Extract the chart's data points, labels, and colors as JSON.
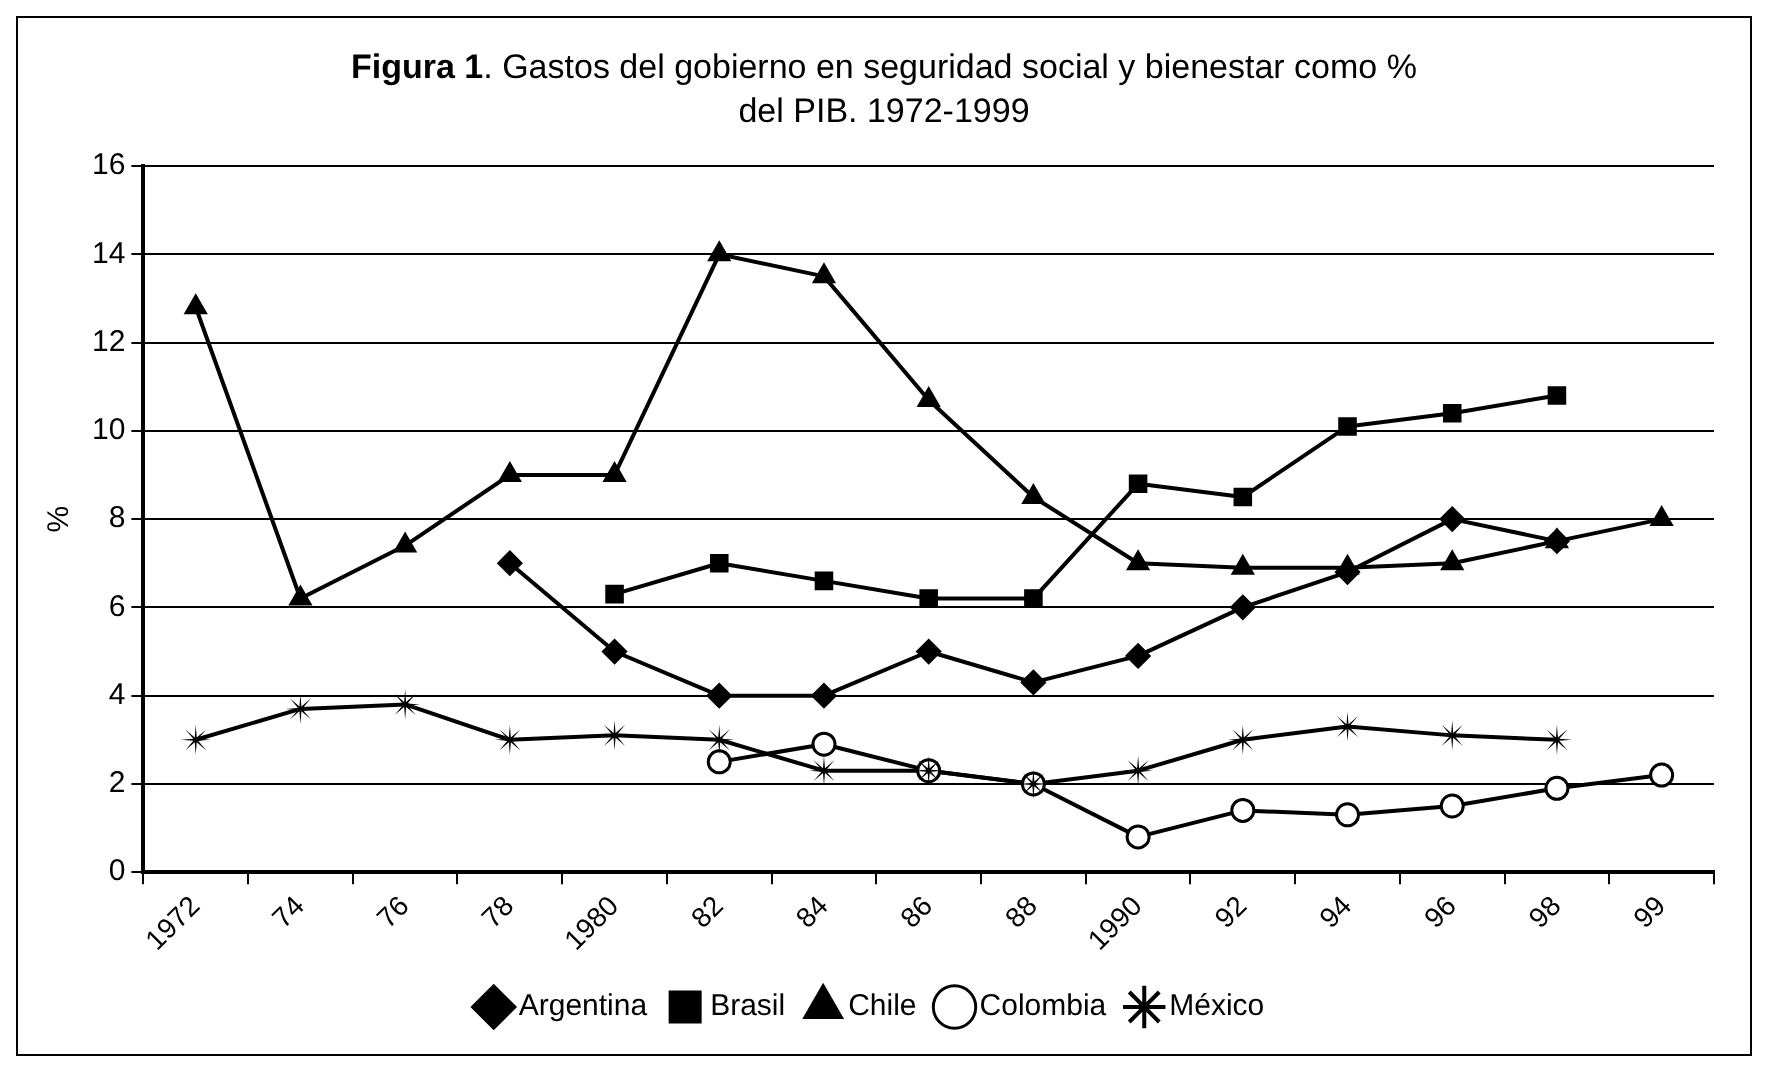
{
  "chart_data": {
    "type": "line",
    "title": "Figura 1. Gastos del gobierno en seguridad social y bienestar como % del PIB. 1972-1999",
    "ylabel": "%",
    "categories": [
      "1972",
      "74",
      "76",
      "78",
      "1980",
      "82",
      "84",
      "86",
      "88",
      "1990",
      "92",
      "94",
      "96",
      "98",
      "99"
    ],
    "series": [
      {
        "name": "Argentina",
        "color": "#000000",
        "marker": "diamond",
        "values": [
          null,
          null,
          null,
          7,
          5,
          4,
          4,
          5,
          4.3,
          4.9,
          6,
          6.8,
          8,
          7.5,
          null
        ]
      },
      {
        "name": "Brasil",
        "color": "#000000",
        "marker": "square",
        "values": [
          null,
          null,
          null,
          null,
          6.3,
          7,
          6.6,
          6.2,
          6.2,
          8.8,
          8.5,
          10.1,
          10.4,
          10.8,
          null
        ]
      },
      {
        "name": "Chile",
        "color": "#000000",
        "marker": "triangle",
        "values": [
          12.8,
          6.2,
          7.4,
          9,
          9,
          14,
          13.5,
          10.7,
          8.5,
          7,
          6.9,
          6.9,
          7,
          7.5,
          8
        ]
      },
      {
        "name": "Colombia",
        "color": "#000000",
        "marker": "circle",
        "values": [
          null,
          null,
          null,
          null,
          null,
          2.5,
          2.9,
          2.3,
          2,
          0.8,
          1.4,
          1.3,
          1.5,
          1.9,
          2.2
        ]
      },
      {
        "name": "México",
        "color": "#000000",
        "marker": "star",
        "values": [
          3,
          3.7,
          3.8,
          3,
          3.1,
          3,
          2.3,
          2.3,
          2,
          2.3,
          3,
          3.3,
          3.1,
          3,
          null
        ]
      }
    ],
    "ylim": [
      0,
      16
    ],
    "yticks": [
      0,
      2,
      4,
      6,
      8,
      10,
      12,
      14,
      16
    ],
    "grid": "y",
    "legend": "bottom",
    "line_style": "solid"
  }
}
